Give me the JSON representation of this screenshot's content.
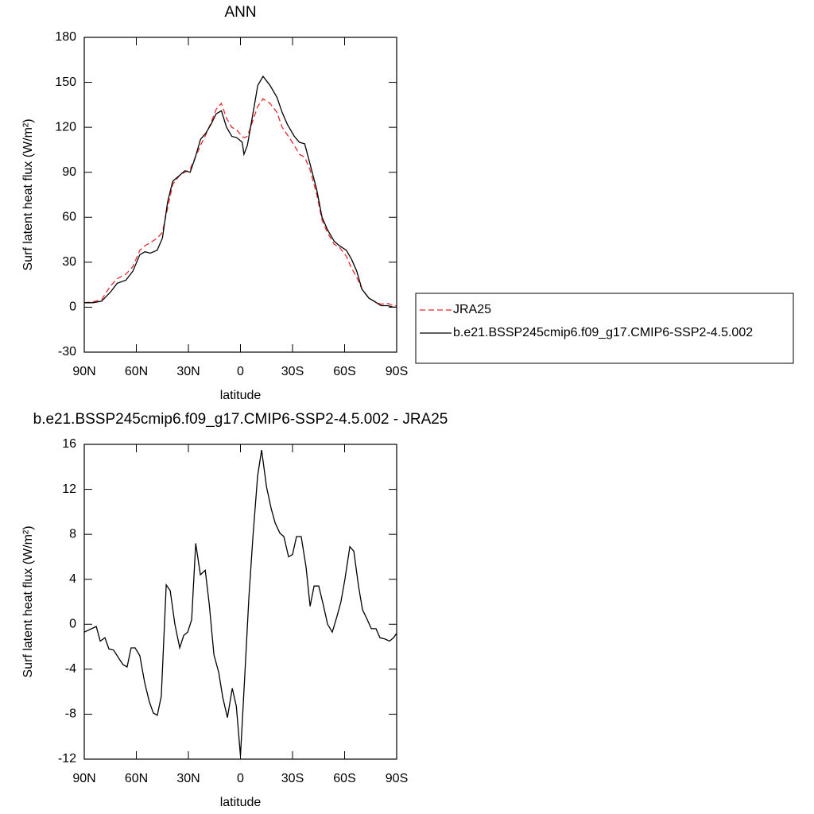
{
  "chart_data": [
    {
      "type": "line",
      "title": "ANN",
      "xlabel": "latitude",
      "ylabel": "Surf latent heat flux (W/m²)",
      "xlim": [
        90,
        -90
      ],
      "xticks": [
        {
          "value": 90,
          "label": "90N"
        },
        {
          "value": 60,
          "label": "60N"
        },
        {
          "value": 30,
          "label": "30N"
        },
        0,
        {
          "value": -30,
          "label": "30S"
        },
        {
          "value": -60,
          "label": "60S"
        },
        {
          "value": -90,
          "label": "90S"
        }
      ],
      "ylim": [
        -30,
        180
      ],
      "yticks": [
        -30,
        0,
        30,
        60,
        90,
        120,
        150,
        180
      ],
      "legend": "right",
      "x": [
        90,
        85,
        80,
        75,
        71,
        66,
        62,
        58,
        55,
        52,
        48,
        45,
        42,
        39,
        35,
        32,
        29,
        26,
        23,
        20,
        17,
        14,
        11,
        8,
        5,
        2,
        -1,
        -2,
        -4,
        -7,
        -10,
        -13,
        -17,
        -21,
        -24,
        -27,
        -31,
        -34,
        -37,
        -40,
        -44,
        -47,
        -50,
        -54,
        -57,
        -61,
        -64,
        -67,
        -70,
        -74,
        -77,
        -81,
        -85,
        -88,
        -90
      ],
      "series": [
        {
          "name": "JRA25",
          "color": "#e8262b",
          "line_style": "dashed",
          "values": [
            3,
            3.5,
            5,
            14,
            19,
            22,
            27,
            38,
            41,
            43,
            46,
            50,
            66,
            82,
            88,
            90,
            92,
            100,
            108,
            115,
            123,
            132,
            136,
            126,
            120,
            118,
            114,
            113,
            114,
            124,
            134,
            139,
            136,
            130,
            120,
            115,
            108,
            102,
            100,
            92,
            75,
            58,
            50,
            42,
            40,
            34,
            26,
            20,
            12,
            6,
            4,
            2,
            2.5,
            1,
            1
          ]
        },
        {
          "name": "b.e21.BSSP245cmip6.f09_g17.CMIP6-SSP2-4.5.002",
          "color": "#000000",
          "line_style": "solid",
          "values": [
            3,
            3,
            4,
            10,
            16,
            18,
            24,
            35,
            37,
            36,
            38,
            46,
            70,
            84,
            88,
            91,
            90,
            100,
            112,
            116,
            122,
            129,
            131,
            120,
            114,
            113,
            110,
            102,
            108,
            128,
            148,
            154,
            148,
            140,
            130,
            122,
            114,
            110,
            109,
            96,
            78,
            60,
            52,
            44,
            41,
            38,
            32,
            24,
            12,
            6,
            4,
            1,
            1,
            0,
            0
          ]
        }
      ]
    },
    {
      "type": "line",
      "title": "b.e21.BSSP245cmip6.f09_g17.CMIP6-SSP2-4.5.002 - JRA25",
      "xlabel": "latitude",
      "ylabel": "Surf latent heat flux (W/m²)",
      "xlim": [
        90,
        -90
      ],
      "xticks": [
        {
          "value": 90,
          "label": "90N"
        },
        {
          "value": 60,
          "label": "60N"
        },
        {
          "value": 30,
          "label": "30N"
        },
        0,
        {
          "value": -30,
          "label": "30S"
        },
        {
          "value": -60,
          "label": "60S"
        },
        {
          "value": -90,
          "label": "90S"
        }
      ],
      "ylim": [
        -12,
        16
      ],
      "yticks": [
        -12,
        -8,
        -4,
        0,
        4,
        8,
        12,
        16
      ],
      "x": [
        90,
        83.1,
        80.8,
        78.1,
        75.8,
        73.1,
        69.8,
        67.6,
        65.3,
        63,
        60.7,
        58,
        55.2,
        52.5,
        50.2,
        47.9,
        45.6,
        42.8,
        40.5,
        37.8,
        35,
        32.7,
        30.4,
        28.1,
        25.8,
        23.1,
        20.3,
        18,
        15.3,
        12.5,
        10.2,
        7.5,
        4.7,
        2.4,
        0,
        -2.6,
        -4.9,
        -7.2,
        -9.9,
        -12.2,
        -15,
        -17.7,
        -20,
        -22.7,
        -25,
        -27.7,
        -30,
        -32.3,
        -35,
        -37.8,
        -40.1,
        -42.4,
        -45.1,
        -47.9,
        -50.2,
        -52.9,
        -55.6,
        -57.9,
        -60.2,
        -63,
        -65.3,
        -68,
        -70.3,
        -73.1,
        -75.4,
        -78.1,
        -80.4,
        -83.1,
        -85.9,
        -88.2,
        -90
      ],
      "series": [
        {
          "color": "#000000",
          "line_style": "solid",
          "values": [
            -0.7,
            -0.2,
            -1.5,
            -1.2,
            -2.2,
            -2.3,
            -3.1,
            -3.6,
            -3.8,
            -2.1,
            -2.1,
            -2.8,
            -5.2,
            -6.9,
            -7.9,
            -8.1,
            -6.4,
            3.5,
            3,
            0,
            -2.1,
            -1,
            -0.7,
            0.4,
            7.2,
            4.4,
            4.8,
            1.8,
            -2.7,
            -4.3,
            -6.5,
            -8.3,
            -5.7,
            -7.3,
            -11.7,
            -4.2,
            2.5,
            7.8,
            13.2,
            15.5,
            12.2,
            10.3,
            9,
            8.1,
            7.8,
            6,
            6.2,
            7.8,
            7.8,
            5.1,
            1.6,
            3.4,
            3.4,
            1.6,
            0,
            -0.7,
            0.7,
            2,
            4,
            6.9,
            6.5,
            3.4,
            1.3,
            0.4,
            -0.4,
            -0.4,
            -1.2,
            -1.3,
            -1.5,
            -1.2,
            -0.8
          ]
        }
      ]
    }
  ]
}
